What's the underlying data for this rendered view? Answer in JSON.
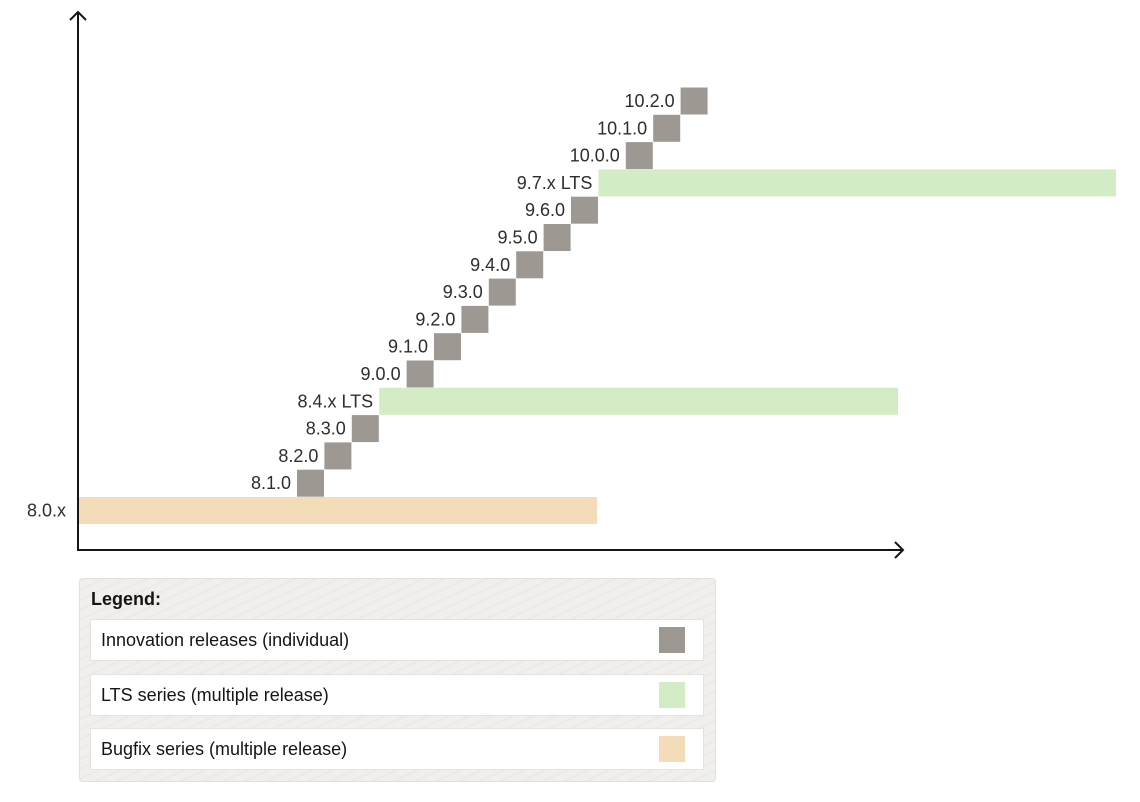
{
  "releases": [
    {
      "label": "8.0.x",
      "type": "bugfix",
      "level": 0,
      "span": "long"
    },
    {
      "label": "8.1.0",
      "type": "innovation",
      "level": 1
    },
    {
      "label": "8.2.0",
      "type": "innovation",
      "level": 2
    },
    {
      "label": "8.3.0",
      "type": "innovation",
      "level": 3
    },
    {
      "label": "8.4.x LTS",
      "type": "lts",
      "level": 4,
      "span": "long"
    },
    {
      "label": "9.0.0",
      "type": "innovation",
      "level": 5
    },
    {
      "label": "9.1.0",
      "type": "innovation",
      "level": 6
    },
    {
      "label": "9.2.0",
      "type": "innovation",
      "level": 7
    },
    {
      "label": "9.3.0",
      "type": "innovation",
      "level": 8
    },
    {
      "label": "9.4.0",
      "type": "innovation",
      "level": 9
    },
    {
      "label": "9.5.0",
      "type": "innovation",
      "level": 10
    },
    {
      "label": "9.6.0",
      "type": "innovation",
      "level": 11
    },
    {
      "label": "9.7.x LTS",
      "type": "lts",
      "level": 12,
      "span": "long"
    },
    {
      "label": "10.0.0",
      "type": "innovation",
      "level": 13
    },
    {
      "label": "10.1.0",
      "type": "innovation",
      "level": 14
    },
    {
      "label": "10.2.0",
      "type": "innovation",
      "level": 15
    }
  ],
  "legend": {
    "title": "Legend:",
    "items": [
      {
        "label": "Innovation releases (individual)",
        "type": "innovation"
      },
      {
        "label": "LTS series (multiple release)",
        "type": "lts"
      },
      {
        "label": "Bugfix series (multiple release)",
        "type": "bugfix"
      }
    ]
  },
  "colors": {
    "innovation": "#9e9892",
    "lts": "#d4ecc6",
    "bugfix": "#f5dcb8",
    "axis": "#161513",
    "text": "#312d2a"
  }
}
